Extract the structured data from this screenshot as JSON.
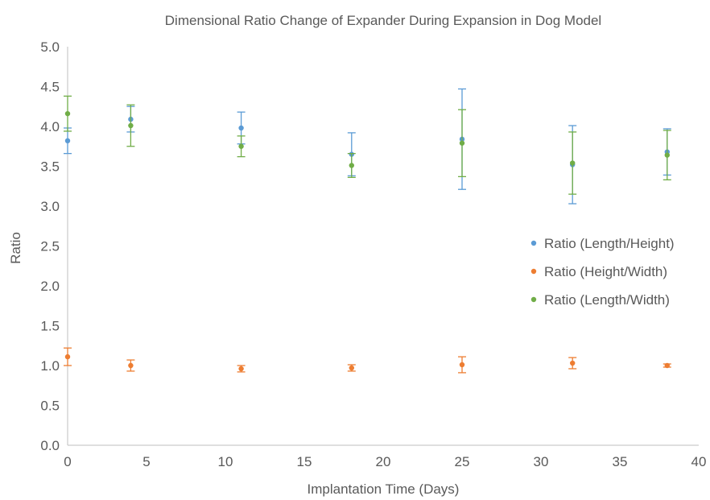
{
  "chart_data": {
    "type": "scatter",
    "title": "Dimensional Ratio Change of Expander During Expansion in Dog Model",
    "xlabel": "Implantation Time (Days)",
    "ylabel": "Ratio",
    "xlim": [
      0,
      40
    ],
    "ylim": [
      0,
      5
    ],
    "xticks": [
      "0",
      "5",
      "10",
      "15",
      "20",
      "25",
      "30",
      "35",
      "40"
    ],
    "yticks": [
      "0.0",
      "0.5",
      "1.0",
      "1.5",
      "2.0",
      "2.5",
      "3.0",
      "3.5",
      "4.0",
      "4.5",
      "5.0"
    ],
    "grid": false,
    "error_bars": true,
    "legend_position": "right",
    "series": [
      {
        "name": "Ratio (Length/Height)",
        "color": "#5b9bd5",
        "x": [
          0,
          4,
          11,
          18,
          25,
          32,
          38
        ],
        "y": [
          3.82,
          4.09,
          3.98,
          3.65,
          3.84,
          3.52,
          3.68
        ],
        "err": [
          0.16,
          0.16,
          0.2,
          0.27,
          0.63,
          0.49,
          0.29
        ]
      },
      {
        "name": "Ratio (Height/Width)",
        "color": "#ed7d31",
        "x": [
          0,
          4,
          11,
          18,
          25,
          32,
          38
        ],
        "y": [
          1.11,
          1.0,
          0.96,
          0.97,
          1.01,
          1.03,
          1.0
        ],
        "err": [
          0.11,
          0.07,
          0.04,
          0.04,
          0.1,
          0.07,
          0.02
        ]
      },
      {
        "name": "Ratio (Length/Width)",
        "color": "#70ad47",
        "x": [
          0,
          4,
          11,
          18,
          25,
          32,
          38
        ],
        "y": [
          4.16,
          4.01,
          3.75,
          3.51,
          3.79,
          3.54,
          3.64
        ],
        "err": [
          0.22,
          0.26,
          0.13,
          0.15,
          0.42,
          0.39,
          0.31
        ]
      }
    ]
  }
}
